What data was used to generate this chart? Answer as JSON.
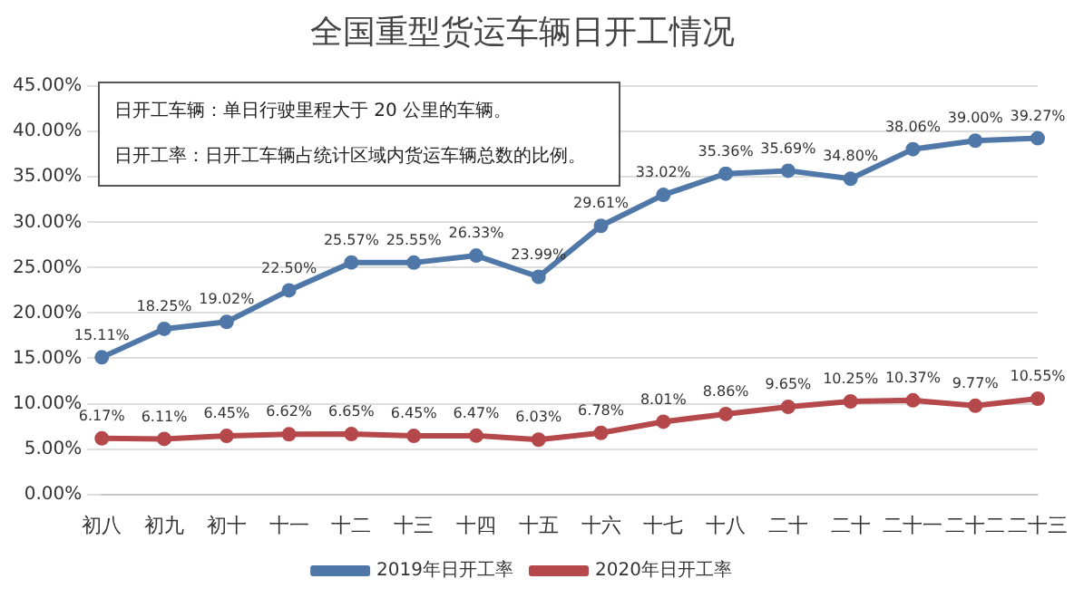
{
  "chart_data": {
    "type": "line",
    "title": "全国重型货运车辆日开工情况",
    "categories": [
      "初八",
      "初九",
      "初十",
      "十一",
      "十二",
      "十三",
      "十四",
      "十五",
      "十六",
      "十七",
      "十八",
      "二十",
      "二十",
      "二十一",
      "二十二",
      "二十三"
    ],
    "series": [
      {
        "name": "2019年日开工率",
        "color": "#4f77a8",
        "values": [
          15.11,
          18.25,
          19.02,
          22.5,
          25.57,
          25.55,
          26.33,
          23.99,
          29.61,
          33.02,
          35.36,
          35.69,
          34.8,
          38.06,
          39.0,
          39.27
        ],
        "value_labels": [
          "15.11%",
          "18.25%",
          "19.02%",
          "22.50%",
          "25.57%",
          "25.55%",
          "26.33%",
          "23.99%",
          "29.61%",
          "33.02%",
          "35.36%",
          "35.69%",
          "34.80%",
          "38.06%",
          "39.00%",
          "39.27%"
        ]
      },
      {
        "name": "2020年日开工率",
        "color": "#b5484b",
        "values": [
          6.17,
          6.11,
          6.45,
          6.62,
          6.65,
          6.45,
          6.47,
          6.03,
          6.78,
          8.01,
          8.86,
          9.65,
          10.25,
          10.37,
          9.77,
          10.55
        ],
        "value_labels": [
          "6.17%",
          "6.11%",
          "6.45%",
          "6.62%",
          "6.65%",
          "6.45%",
          "6.47%",
          "6.03%",
          "6.78%",
          "8.01%",
          "8.86%",
          "9.65%",
          "10.25%",
          "10.37%",
          "9.77%",
          "10.55%"
        ]
      }
    ],
    "ylim": [
      0,
      45
    ],
    "yticks": [
      {
        "value": 0,
        "label": "0.00%"
      },
      {
        "value": 5,
        "label": "5.00%"
      },
      {
        "value": 10,
        "label": "10.00%"
      },
      {
        "value": 15,
        "label": "15.00%"
      },
      {
        "value": 20,
        "label": "20.00%"
      },
      {
        "value": 25,
        "label": "25.00%"
      },
      {
        "value": 30,
        "label": "30.00%"
      },
      {
        "value": 35,
        "label": "35.00%"
      },
      {
        "value": 40,
        "label": "40.00%"
      },
      {
        "value": 45,
        "label": "45.00%"
      }
    ],
    "annotations": [
      "日开工车辆：单日行驶里程大于 20 公里的车辆。",
      "日开工率：日开工车辆占统计区域内货运车辆总数的比例。"
    ],
    "grid": "y",
    "legend": "bottom",
    "marker": "circle",
    "line_style": "solid"
  }
}
